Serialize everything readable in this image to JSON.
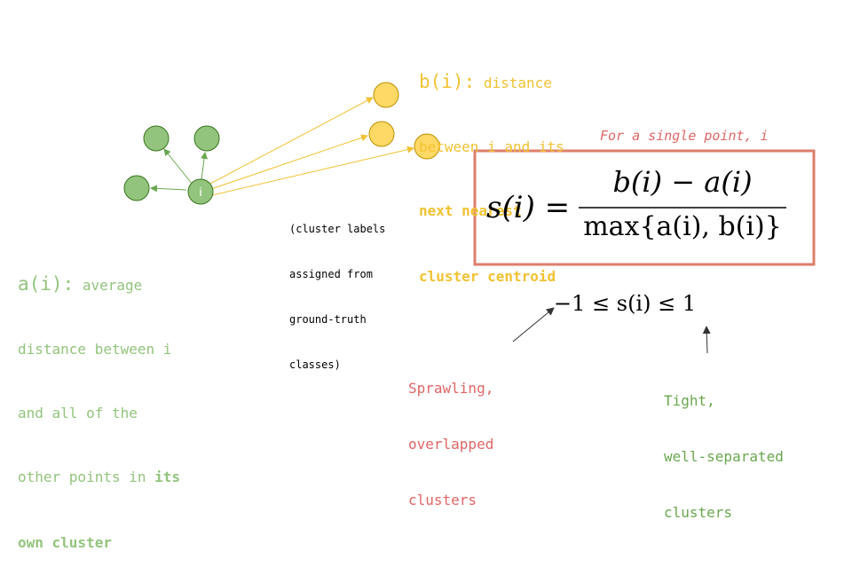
{
  "colors": {
    "own_cluster": "#93c47d",
    "own_cluster_stroke": "#38761d",
    "other_cluster": "#ffd966",
    "other_cluster_stroke": "#bf9000",
    "arrow_green": "#6aa84f",
    "arrow_yellow": "#f1c232",
    "box_border": "#dd7e6b",
    "negative_text": "#e06666",
    "positive_text": "#6aa84f"
  },
  "point_i_label": "i",
  "b_label": {
    "name": "b(i):",
    "line1": " distance",
    "line2": "between i and its",
    "line3": "next nearest",
    "line4": "cluster centroid"
  },
  "a_label": {
    "name": "a(i):",
    "line1": " average",
    "line2": "distance between i",
    "line3": "and all of the",
    "line4_plain": "other points in ",
    "line4_bold": "its",
    "line5": "own cluster"
  },
  "cluster_note": {
    "line1": "(cluster labels",
    "line2": "assigned from",
    "line3": "ground-truth",
    "line4": "classes)"
  },
  "formula_caption": "For a single point, i",
  "formula": {
    "lhs": "s(i) =",
    "numerator": "b(i) − a(i)",
    "denominator": "max{a(i), b(i)}"
  },
  "range": "−1 ≤ s(i) ≤ 1",
  "negative_label": {
    "line1": "Sprawling,",
    "line2": "overlapped",
    "line3": "clusters"
  },
  "positive_label": {
    "line1": "Tight,",
    "line2": "well-separated",
    "line3": "clusters"
  }
}
